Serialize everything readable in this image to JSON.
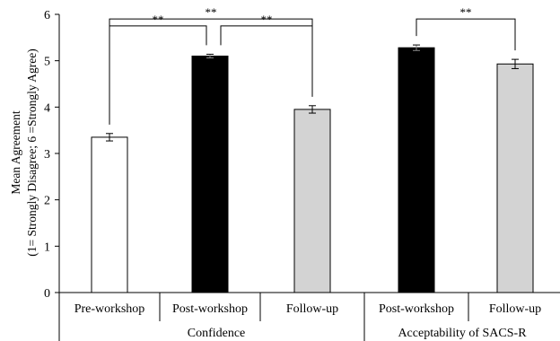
{
  "chart_data": {
    "type": "bar",
    "ylabel_line1": "Mean Agreement",
    "ylabel_line2": "(1= Strongly Disagree; 6 =Strongly Agree)",
    "ylim": [
      0,
      6
    ],
    "yticks": [
      "0",
      "1",
      "2",
      "3",
      "4",
      "5",
      "6"
    ],
    "grid": false,
    "bars": [
      {
        "category": "Pre-workshop",
        "group": 0,
        "value": 3.35,
        "error": 0.08,
        "color": "#ffffff"
      },
      {
        "category": "Post-workshop",
        "group": 0,
        "value": 5.1,
        "error": 0.04,
        "color": "#000000"
      },
      {
        "category": "Follow-up",
        "group": 0,
        "value": 3.95,
        "error": 0.08,
        "color": "#d3d3d3"
      },
      {
        "category": "Post-workshop",
        "group": 1,
        "value": 5.28,
        "error": 0.06,
        "color": "#000000"
      },
      {
        "category": "Follow-up",
        "group": 1,
        "value": 4.93,
        "error": 0.1,
        "color": "#d3d3d3"
      }
    ],
    "groups": [
      "Confidence",
      "Acceptability of SACS-R"
    ],
    "significance": [
      {
        "from": 0,
        "to": 1,
        "label": "**",
        "level": 5.75
      },
      {
        "from": 0,
        "to": 2,
        "label": "**",
        "level": 5.9
      },
      {
        "from": 1,
        "to": 2,
        "label": "**",
        "level": 5.75
      },
      {
        "from": 3,
        "to": 4,
        "label": "**",
        "level": 5.9
      }
    ]
  }
}
